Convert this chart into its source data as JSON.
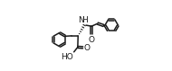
{
  "bg_color": "#ffffff",
  "line_color": "#1a1a1a",
  "line_width": 1.1,
  "font_size": 6.5,
  "fig_width": 1.9,
  "fig_height": 0.79,
  "dpi": 100,
  "xlim": [
    0.0,
    1.0
  ],
  "ylim": [
    0.0,
    1.0
  ]
}
